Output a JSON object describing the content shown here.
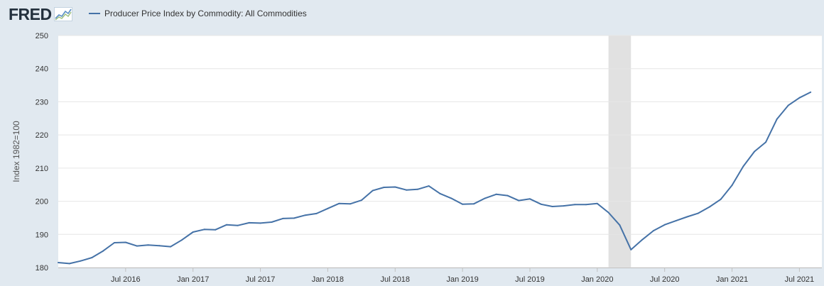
{
  "brand": {
    "name": "FRED"
  },
  "colors": {
    "series": "#4572a7",
    "recession": "#e1e1e1",
    "plot_bg": "#ffffff",
    "page_bg": "#e1e9f0",
    "grid": "#e6e6e6"
  },
  "chart_data": {
    "type": "line",
    "title": "",
    "xlabel": "",
    "ylabel": "Index 1982=100",
    "ylim": [
      180,
      250
    ],
    "y_ticks": [
      180,
      190,
      200,
      210,
      220,
      230,
      240,
      250
    ],
    "grid": true,
    "legend": "top-left",
    "x_start": "2016-01",
    "x_end": "2021-09",
    "x_ticks": [
      {
        "label": "Jul 2016",
        "date": "2016-07"
      },
      {
        "label": "Jan 2017",
        "date": "2017-01"
      },
      {
        "label": "Jul 2017",
        "date": "2017-07"
      },
      {
        "label": "Jan 2018",
        "date": "2018-01"
      },
      {
        "label": "Jul 2018",
        "date": "2018-07"
      },
      {
        "label": "Jan 2019",
        "date": "2019-01"
      },
      {
        "label": "Jul 2019",
        "date": "2019-07"
      },
      {
        "label": "Jan 2020",
        "date": "2020-01"
      },
      {
        "label": "Jul 2020",
        "date": "2020-07"
      },
      {
        "label": "Jan 2021",
        "date": "2021-01"
      },
      {
        "label": "Jul 2021",
        "date": "2021-07"
      }
    ],
    "recession": {
      "start": "2020-02",
      "end": "2020-04"
    },
    "series": [
      {
        "name": "Producer Price Index by Commodity: All Commodities",
        "color": "#4572a7",
        "x": [
          "2016-01",
          "2016-02",
          "2016-03",
          "2016-04",
          "2016-05",
          "2016-06",
          "2016-07",
          "2016-08",
          "2016-09",
          "2016-10",
          "2016-11",
          "2016-12",
          "2017-01",
          "2017-02",
          "2017-03",
          "2017-04",
          "2017-05",
          "2017-06",
          "2017-07",
          "2017-08",
          "2017-09",
          "2017-10",
          "2017-11",
          "2017-12",
          "2018-01",
          "2018-02",
          "2018-03",
          "2018-04",
          "2018-05",
          "2018-06",
          "2018-07",
          "2018-08",
          "2018-09",
          "2018-10",
          "2018-11",
          "2018-12",
          "2019-01",
          "2019-02",
          "2019-03",
          "2019-04",
          "2019-05",
          "2019-06",
          "2019-07",
          "2019-08",
          "2019-09",
          "2019-10",
          "2019-11",
          "2019-12",
          "2020-01",
          "2020-02",
          "2020-03",
          "2020-04",
          "2020-05",
          "2020-06",
          "2020-07",
          "2020-08",
          "2020-09",
          "2020-10",
          "2020-11",
          "2020-12",
          "2021-01",
          "2021-02",
          "2021-03",
          "2021-04",
          "2021-05",
          "2021-06",
          "2021-07",
          "2021-08"
        ],
        "values": [
          181.5,
          181.2,
          182.0,
          183.0,
          185.0,
          187.5,
          187.6,
          186.5,
          186.8,
          186.6,
          186.3,
          188.3,
          190.7,
          191.5,
          191.4,
          192.9,
          192.7,
          193.5,
          193.4,
          193.7,
          194.8,
          194.9,
          195.8,
          196.3,
          197.8,
          199.3,
          199.2,
          200.3,
          203.2,
          204.2,
          204.3,
          203.4,
          203.6,
          204.6,
          202.3,
          200.9,
          199.1,
          199.2,
          200.9,
          202.1,
          201.7,
          200.2,
          200.7,
          199.1,
          198.4,
          198.6,
          199.0,
          199.0,
          199.3,
          196.6,
          192.8,
          185.4,
          188.4,
          191.1,
          192.9,
          194.1,
          195.3,
          196.4,
          198.3,
          200.6,
          204.8,
          210.5,
          215.0,
          217.8,
          224.8,
          228.9,
          231.2,
          232.9
        ]
      }
    ]
  }
}
